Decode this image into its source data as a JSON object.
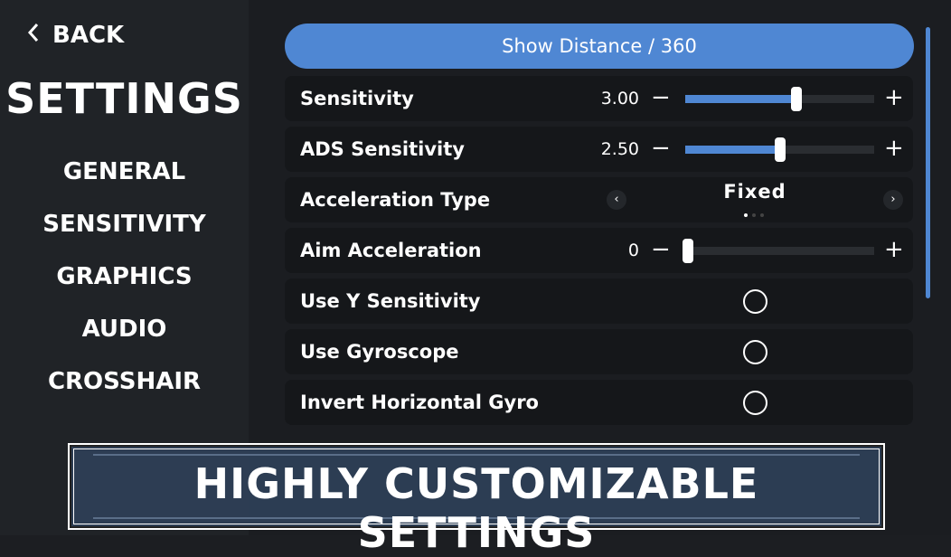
{
  "sidebar": {
    "back_label": "BACK",
    "title": "SETTINGS",
    "items": [
      {
        "label": "GENERAL"
      },
      {
        "label": "SENSITIVITY",
        "active": true
      },
      {
        "label": "GRAPHICS"
      },
      {
        "label": "AUDIO"
      },
      {
        "label": "CROSSHAIR"
      }
    ]
  },
  "main": {
    "show_distance_label": "Show Distance / 360",
    "rows": [
      {
        "label": "Sensitivity",
        "value": "3.00",
        "fill_fraction": 0.59
      },
      {
        "label": "ADS Sensitivity",
        "value": "2.50",
        "fill_fraction": 0.5
      },
      {
        "label": "Acceleration Type",
        "selected": "Fixed",
        "option_index": 1,
        "option_count": 3
      },
      {
        "label": "Aim Acceleration",
        "value": "0",
        "fill_fraction": 0.0
      },
      {
        "label": "Use Y Sensitivity",
        "checked": false
      },
      {
        "label": "Use Gyroscope",
        "checked": false
      },
      {
        "label": "Invert Horizontal Gyro",
        "checked": false
      }
    ],
    "minus_symbol": "−",
    "plus_symbol": "+",
    "prev_symbol": "‹",
    "next_symbol": "›"
  },
  "banner": {
    "text": "HIGHLY CUSTOMIZABLE SETTINGS"
  },
  "colors": {
    "accent": "#4f87d3",
    "sidebar_bg": "#202327",
    "row_bg": "#15171a",
    "banner_bg": "#2d3e55"
  }
}
